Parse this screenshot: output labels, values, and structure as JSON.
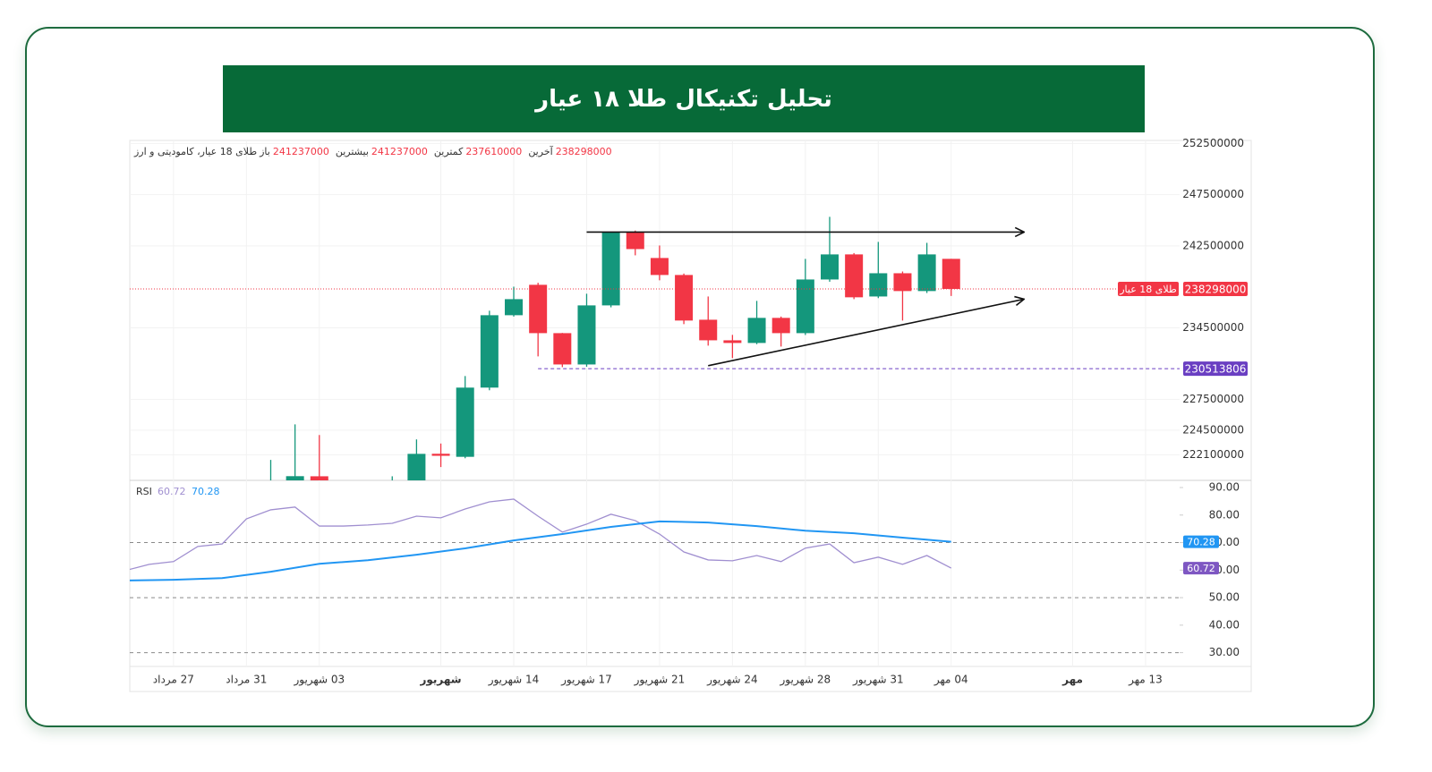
{
  "header": {
    "title": "تحلیل تکنیکال طلا ۱۸ عیار"
  },
  "chart_data": [
    {
      "type": "candlestick",
      "legend": {
        "name": "طلای 18 عیار، کامودیتی و ارز",
        "open_label": "باز",
        "high_label": "بیشترین",
        "low_label": "کمترین",
        "close_label": "آخرین"
      },
      "x": [
        0,
        1,
        2,
        5,
        6,
        7,
        8,
        9,
        10,
        11,
        12,
        13,
        14,
        15,
        16,
        17,
        18,
        19,
        20,
        21,
        22,
        23,
        24,
        25,
        26,
        27,
        28
      ],
      "open": [
        219200000,
        219200000,
        220000000,
        219300000,
        219400000,
        222200000,
        221900000,
        228660000,
        235730000,
        238700000,
        233980000,
        230920000,
        236690000,
        243850000,
        241320000,
        239660000,
        235290000,
        233280000,
        233020000,
        235470000,
        233980000,
        239220000,
        241670000,
        237560000,
        239830000,
        238090000,
        241237000
      ],
      "high": [
        221600000,
        225070000,
        224030000,
        220000000,
        223600000,
        223200000,
        229790000,
        236170000,
        238520000,
        238900000,
        234000000,
        237830000,
        243850000,
        244000000,
        242540000,
        239800000,
        237560000,
        233810000,
        237130000,
        235600000,
        241230000,
        245340000,
        241800000,
        242890000,
        240000000,
        242800000,
        241237000
      ],
      "low": [
        218800000,
        219000000,
        219000000,
        219000000,
        219000000,
        220900000,
        221760000,
        228400000,
        235600000,
        231710000,
        230660000,
        230700000,
        236500000,
        241580000,
        239140000,
        234860000,
        232760000,
        231540000,
        232900000,
        232670000,
        233800000,
        239000000,
        237300000,
        237400000,
        235210000,
        237900000,
        237610000
      ],
      "close": [
        219400000,
        220010000,
        219300000,
        219500000,
        222190000,
        222000000,
        228660000,
        235730000,
        237300000,
        233980000,
        230920000,
        236690000,
        243850000,
        242190000,
        239660000,
        235210000,
        233280000,
        233020000,
        235470000,
        233980000,
        239220000,
        241670000,
        237480000,
        239830000,
        238090000,
        241670000,
        238298000
      ],
      "up_color": "#14977c",
      "down_color": "#f23645",
      "xlim": [
        -5.8,
        37.4
      ],
      "xticks": [
        {
          "value": -4,
          "label": "27 مرداد"
        },
        {
          "value": -1,
          "label": "31 مرداد"
        },
        {
          "value": 2,
          "label": "03 شهریور"
        },
        {
          "value": 7,
          "label": "شهریور",
          "bold": true
        },
        {
          "value": 10,
          "label": "14 شهریور"
        },
        {
          "value": 13,
          "label": "17 شهریور"
        },
        {
          "value": 16,
          "label": "21 شهریور"
        },
        {
          "value": 19,
          "label": "24 شهریور"
        },
        {
          "value": 22,
          "label": "28 شهریور"
        },
        {
          "value": 25,
          "label": "31 شهریور"
        },
        {
          "value": 28,
          "label": "04 مهر"
        },
        {
          "value": 33,
          "label": "مهر",
          "bold": true
        },
        {
          "value": 36,
          "label": "13 مهر"
        }
      ],
      "ylim": [
        219600000,
        252800000
      ],
      "yticks": [
        222100000,
        224500000,
        227500000,
        234500000,
        242500000,
        247500000,
        252500000
      ],
      "grid": true,
      "last_price_label": "طلای 18 عیار",
      "price_lines": [
        {
          "value": 230513806,
          "color": "#6a3fc2",
          "x_start": 11
        }
      ],
      "trend_lines": [
        {
          "x": [
            13,
            31
          ],
          "y": [
            243850000,
            243850000
          ]
        },
        {
          "x": [
            18,
            31
          ],
          "y": [
            230800000,
            237300000
          ]
        }
      ]
    },
    {
      "type": "line",
      "title": "RSI",
      "series": [
        {
          "color": "#a08fd0",
          "x": [
            -6,
            -5,
            -4,
            -3,
            -2,
            -1,
            0,
            1,
            2,
            3,
            4,
            5,
            6,
            7,
            8,
            9,
            10,
            11,
            12,
            13,
            14,
            15,
            16,
            17,
            18,
            19,
            20,
            21,
            22,
            23,
            24,
            25,
            26,
            27,
            28
          ],
          "values": [
            59.8,
            62.1,
            63.1,
            68.6,
            69.5,
            78.6,
            81.9,
            82.9,
            76.0,
            76.0,
            76.4,
            77.0,
            79.6,
            79.0,
            82.2,
            84.8,
            85.8,
            79.6,
            73.8,
            76.7,
            80.3,
            78.0,
            73.1,
            66.6,
            63.7,
            63.4,
            65.3,
            63.1,
            68.0,
            69.5,
            62.7,
            64.7,
            62.1,
            65.3,
            60.72
          ],
          "tag_color": "#7e57c2"
        },
        {
          "color": "#2196f3",
          "x": [
            -6,
            -4,
            -2,
            0,
            2,
            4,
            6,
            8,
            10,
            12,
            14,
            16,
            18,
            20,
            22,
            24,
            26,
            28
          ],
          "values": [
            56.2,
            56.5,
            57.1,
            59.4,
            62.3,
            63.6,
            65.6,
            67.9,
            70.8,
            73.1,
            75.7,
            77.7,
            77.3,
            76.0,
            74.3,
            73.4,
            71.8,
            70.28
          ],
          "tag_color": "#2196f3"
        }
      ],
      "ylim": [
        25,
        92.6
      ],
      "yticks": [
        {
          "value": 30,
          "label": "30.00"
        },
        {
          "value": 40,
          "label": "40.00"
        },
        {
          "value": 50,
          "label": "50.00"
        },
        {
          "value": 60,
          "label": "60.00"
        },
        {
          "value": 70,
          "label": "70.00"
        },
        {
          "value": 80,
          "label": "80.00"
        },
        {
          "value": 90,
          "label": "90.00"
        }
      ],
      "levels": [
        70,
        50,
        30
      ]
    }
  ]
}
